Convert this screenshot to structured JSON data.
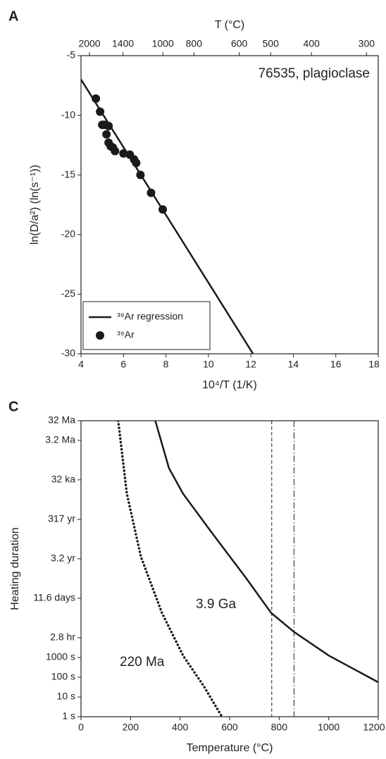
{
  "chart_data": [
    {
      "type": "scatter",
      "panel": "A",
      "x2label": "T (°C)",
      "xlabel": "10⁴/T (1/K)",
      "ylabel": "ln(D/a²) (ln(s⁻¹))",
      "annotation": "76535, plagioclase",
      "xlim": [
        4,
        18
      ],
      "xticks": [
        4,
        6,
        8,
        10,
        12,
        14,
        16,
        18
      ],
      "ylim": [
        -30,
        -5
      ],
      "yticks": [
        -30,
        -25,
        -20,
        -15,
        -10,
        -5
      ],
      "x2scale": "inverse-kelvin",
      "x2ticks": [
        2000,
        1400,
        1000,
        800,
        600,
        500,
        400,
        300
      ],
      "legend": "lower left",
      "series": [
        {
          "name": "³⁹Ar regression",
          "mode": "line",
          "color": "#1a1a1a",
          "x": [
            4,
            12.1
          ],
          "values": [
            -7,
            -30
          ]
        },
        {
          "name": "³⁹Ar",
          "mode": "markers",
          "color": "#1a1a1a",
          "x": [
            4.7,
            4.9,
            5.0,
            5.1,
            5.2,
            5.3,
            5.3,
            5.4,
            5.5,
            5.6,
            6.0,
            6.3,
            6.5,
            6.6,
            6.8,
            7.3,
            7.85
          ],
          "values": [
            -8.6,
            -9.7,
            -10.8,
            -10.8,
            -11.6,
            -10.9,
            -12.3,
            -12.6,
            -12.7,
            -13.0,
            -13.2,
            -13.3,
            -13.7,
            -14.0,
            -15.0,
            -16.5,
            -17.9
          ]
        }
      ]
    },
    {
      "type": "line",
      "panel": "C",
      "xlabel": "Temperature (°C)",
      "ylabel": "Heating duration",
      "xlim": [
        0,
        1200
      ],
      "xticks": [
        0,
        200,
        400,
        600,
        800,
        1000,
        1200
      ],
      "ylim": [
        1,
        1000000000000000.0
      ],
      "log_y": true,
      "yticks": [
        {
          "value": 1,
          "label": "1 s"
        },
        {
          "value": 10,
          "label": "10 s"
        },
        {
          "value": 100,
          "label": "100 s"
        },
        {
          "value": 1000,
          "label": "1000 s"
        },
        {
          "value": 10080,
          "label": "2.8 hr"
        },
        {
          "value": 1002240,
          "label": "11.6 days"
        },
        {
          "value": 101000000.0,
          "label": "3.2 yr"
        },
        {
          "value": 10000000000.0,
          "label": "317 yr"
        },
        {
          "value": 1010000000000.0,
          "label": "32 ka"
        },
        {
          "value": 101000000000000.0,
          "label": "3.2 Ma"
        },
        {
          "value": 1010000000000000.0,
          "label": "32 Ma"
        }
      ],
      "series": [
        {
          "name": "3.9 Ga",
          "mode": "line",
          "style": "solid",
          "color": "#1a1a1a",
          "x": [
            300,
            355,
            412,
            526,
            668,
            768,
            860,
            1000,
            1200
          ],
          "values": [
            1000000000000000.0,
            4000000000000.0,
            200000000000.0,
            2300000000.0,
            10000000.0,
            180000.0,
            20000.0,
            1260,
            56
          ]
        },
        {
          "name": "220 Ma",
          "mode": "line",
          "style": "dotted",
          "color": "#1a1a1a",
          "x": [
            150,
            185,
            242,
            327,
            412,
            498,
            569
          ],
          "values": [
            1000000000000000.0,
            200000000000.0,
            126000000.0,
            180000.0,
            1260,
            32,
            1
          ]
        }
      ],
      "vlines": [
        {
          "x": 770,
          "style": "dashed"
        },
        {
          "x": 860,
          "style": "dashdot"
        }
      ]
    }
  ]
}
